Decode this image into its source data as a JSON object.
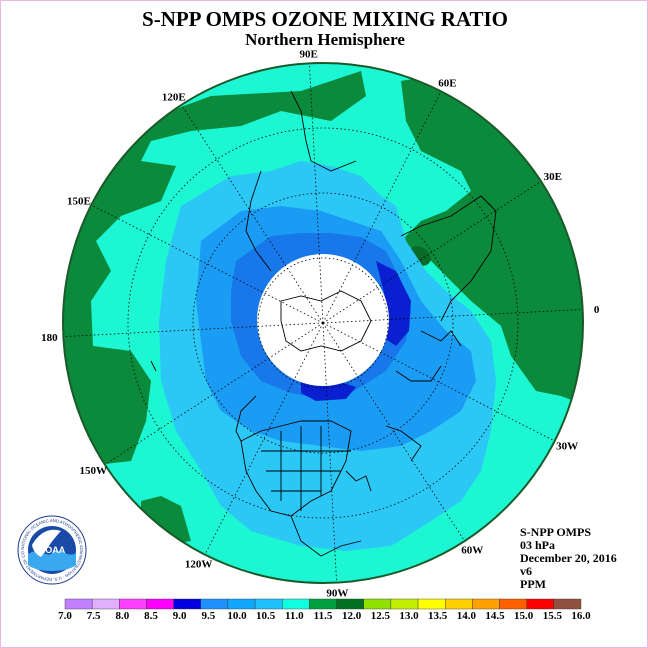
{
  "title": "S-NPP OMPS OZONE MIXING RATIO",
  "subtitle": "Northern Hemisphere",
  "info": {
    "instrument": "S-NPP OMPS",
    "pressure": "03 hPa",
    "date": "December 20, 2016",
    "version": "v6",
    "units": "PPM"
  },
  "logo": {
    "text": "NOAA",
    "ring_text": "NATIONAL OCEANIC AND ATMOSPHERIC ADMINISTRATION · U.S. DEPARTMENT OF COMMERCE"
  },
  "longitude_labels": [
    "90E",
    "60E",
    "30E",
    "0",
    "30W",
    "60W",
    "90W",
    "120W",
    "150W",
    "180",
    "150E",
    "120E"
  ],
  "longitudes_deg": [
    90,
    60,
    30,
    0,
    -30,
    -60,
    -90,
    -120,
    -150,
    180,
    150,
    120
  ],
  "colorbar": {
    "ticks": [
      "7.0",
      "7.5",
      "8.0",
      "8.5",
      "9.0",
      "9.5",
      "10.0",
      "10.5",
      "11.0",
      "11.5",
      "12.0",
      "12.5",
      "13.0",
      "13.5",
      "14.0",
      "14.5",
      "15.0",
      "15.5",
      "16.0"
    ],
    "colors": [
      "#c080ff",
      "#e0b0ff",
      "#ff40ff",
      "#ff00ff",
      "#0000e0",
      "#1e90ff",
      "#10a8ff",
      "#20c0ff",
      "#10ffe0",
      "#00a040",
      "#007020",
      "#90e000",
      "#c0f000",
      "#ffff00",
      "#ffd000",
      "#ffa000",
      "#ff6000",
      "#ff0000",
      "#905040"
    ]
  },
  "colors": {
    "high": "#0a8a3a",
    "teal": "#1cf6d2",
    "sky": "#2bc8f6",
    "mid": "#1a9cf5",
    "blue": "#1878ea",
    "deep": "#0a20d0",
    "night": "#ffffff"
  }
}
